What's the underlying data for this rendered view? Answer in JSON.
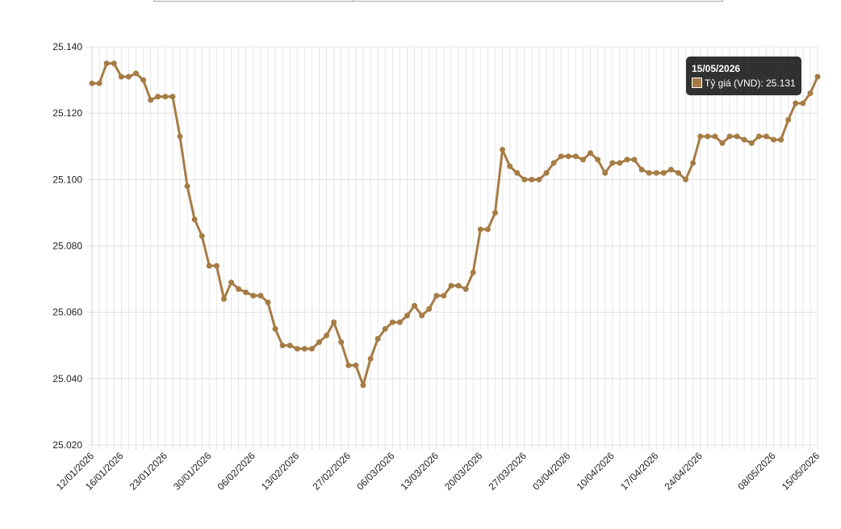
{
  "chart_data": {
    "type": "line",
    "categories": [
      "12/01/2026",
      null,
      null,
      null,
      "16/01/2026",
      null,
      null,
      null,
      null,
      null,
      "23/01/2026",
      null,
      null,
      null,
      null,
      null,
      "30/01/2026",
      null,
      null,
      null,
      null,
      null,
      "06/02/2026",
      null,
      null,
      null,
      null,
      null,
      "13/02/2026",
      null,
      null,
      null,
      null,
      null,
      null,
      "27/02/2026",
      null,
      null,
      null,
      null,
      null,
      "06/03/2026",
      null,
      null,
      null,
      null,
      null,
      "13/03/2026",
      null,
      null,
      null,
      null,
      null,
      "20/03/2026",
      null,
      null,
      null,
      null,
      null,
      "27/03/2026",
      null,
      null,
      null,
      null,
      null,
      "03/04/2026",
      null,
      null,
      null,
      null,
      null,
      "10/04/2026",
      null,
      null,
      null,
      null,
      null,
      "17/04/2026",
      null,
      null,
      null,
      null,
      null,
      "24/04/2026",
      null,
      null,
      null,
      null,
      null,
      null,
      null,
      null,
      null,
      "08/05/2026",
      null,
      null,
      null,
      null,
      null,
      "15/05/2026"
    ],
    "series": [
      {
        "name": "Tỷ giá (VND)",
        "color": "#a67c45",
        "values": [
          25.129,
          25.129,
          25.135,
          25.135,
          25.131,
          25.131,
          25.132,
          25.13,
          25.124,
          25.125,
          25.125,
          25.125,
          25.113,
          25.098,
          25.088,
          25.083,
          25.074,
          25.074,
          25.064,
          25.069,
          25.067,
          25.066,
          25.065,
          25.065,
          25.063,
          25.055,
          25.05,
          25.05,
          25.049,
          25.049,
          25.049,
          25.051,
          25.053,
          25.057,
          25.051,
          25.044,
          25.044,
          25.038,
          25.046,
          25.052,
          25.055,
          25.057,
          25.057,
          25.059,
          25.062,
          25.059,
          25.061,
          25.065,
          25.065,
          25.068,
          25.068,
          25.067,
          25.072,
          25.085,
          25.085,
          25.09,
          25.109,
          25.104,
          25.102,
          25.1,
          25.1,
          25.1,
          25.102,
          25.105,
          25.107,
          25.107,
          25.107,
          25.106,
          25.108,
          25.106,
          25.102,
          25.105,
          25.105,
          25.106,
          25.106,
          25.103,
          25.102,
          25.102,
          25.102,
          25.103,
          25.102,
          25.1,
          25.105,
          25.113,
          25.113,
          25.113,
          25.111,
          25.113,
          25.113,
          25.112,
          25.111,
          25.113,
          25.113,
          25.112,
          25.112,
          25.118,
          25.123,
          25.123,
          25.126,
          25.131
        ]
      }
    ],
    "ylim": [
      25.02,
      25.14
    ],
    "yticks": [
      {
        "value": 25.02,
        "label": "25.020"
      },
      {
        "value": 25.04,
        "label": "25.040"
      },
      {
        "value": 25.06,
        "label": "25.060"
      },
      {
        "value": 25.08,
        "label": "25.080"
      },
      {
        "value": 25.1,
        "label": "25.100"
      },
      {
        "value": 25.12,
        "label": "25.120"
      },
      {
        "value": 25.14,
        "label": "25.140"
      }
    ],
    "grid": true,
    "tooltip": {
      "title": "15/05/2026",
      "text": "Tỷ giá (VND): 25.131"
    }
  }
}
